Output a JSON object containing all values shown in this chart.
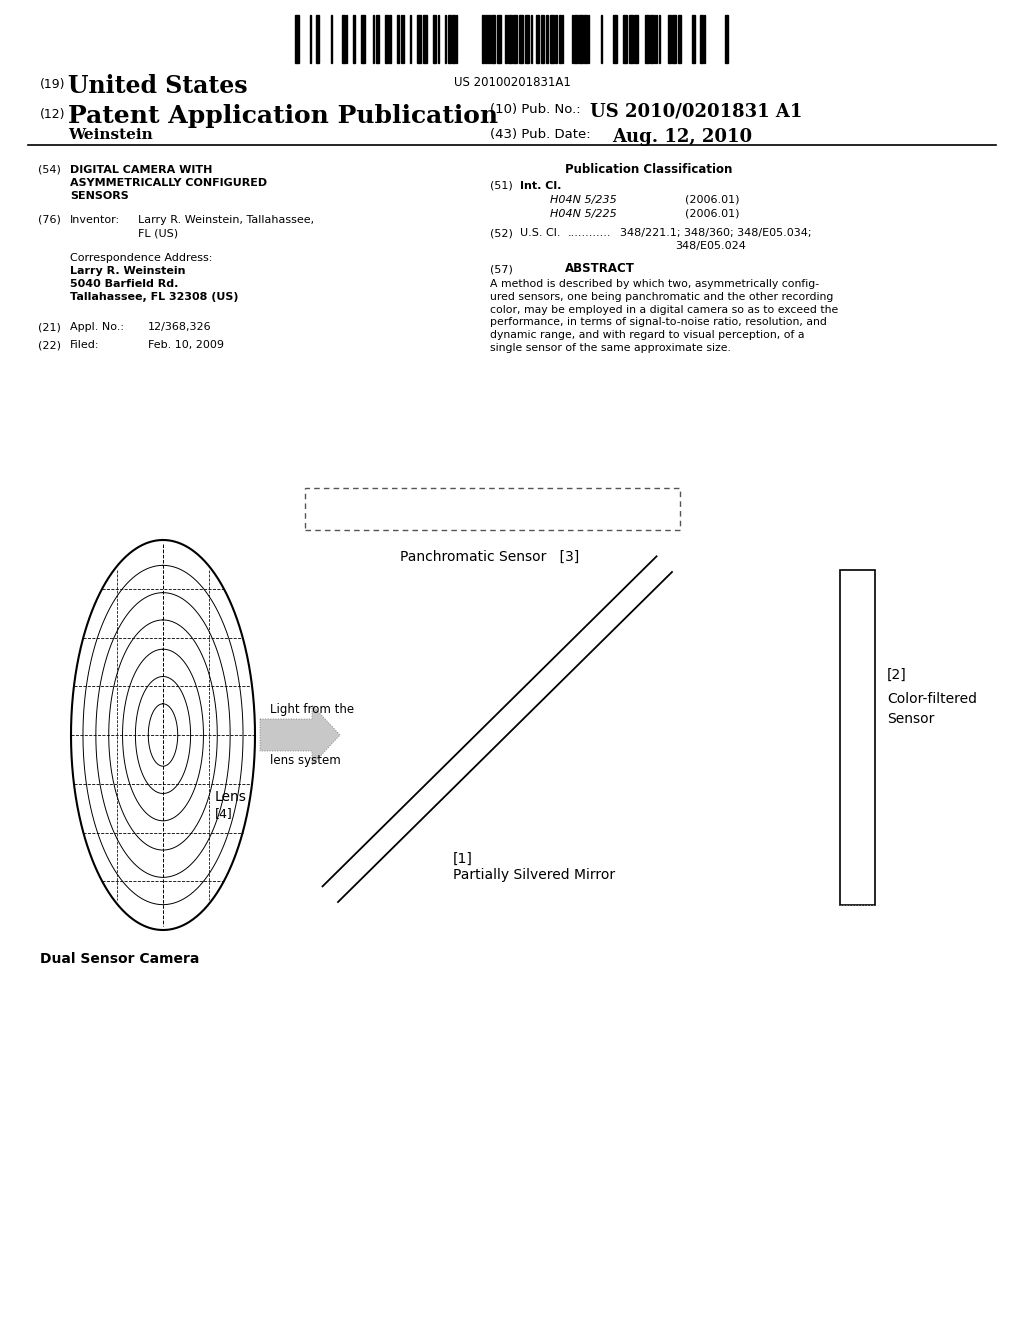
{
  "bg_color": "#ffffff",
  "barcode_text": "US 20100201831A1",
  "title_19": "(19)",
  "title_19_text": "United States",
  "title_12": "(12)",
  "title_12_text": "Patent Application Publication",
  "pub_no_label": "(10) Pub. No.:",
  "pub_no_value": "US 2010/0201831 A1",
  "pub_date_label": "(43) Pub. Date:",
  "pub_date_value": "Aug. 12, 2010",
  "inventor_name": "Weinstein",
  "field_54_label": "(54)",
  "field_54_title1": "DIGITAL CAMERA WITH",
  "field_54_title2": "ASYMMETRICALLY CONFIGURED",
  "field_54_title3": "SENSORS",
  "field_76_label": "(76)",
  "field_76_title": "Inventor:",
  "field_76_value1": "Larry R. Weinstein, Tallahassee,",
  "field_76_value2": "FL (US)",
  "corr_title": "Correspondence Address:",
  "corr_name": "Larry R. Weinstein",
  "corr_addr1": "5040 Barfield Rd.",
  "corr_addr2": "Tallahassee, FL 32308 (US)",
  "field_21_label": "(21)",
  "field_21_title": "Appl. No.:",
  "field_21_value": "12/368,326",
  "field_22_label": "(22)",
  "field_22_title": "Filed:",
  "field_22_value": "Feb. 10, 2009",
  "pub_class_title": "Publication Classification",
  "field_51_label": "(51)",
  "field_51_title": "Int. Cl.",
  "field_51_class1": "H04N 5/235",
  "field_51_year1": "(2006.01)",
  "field_51_class2": "H04N 5/225",
  "field_51_year2": "(2006.01)",
  "field_52_label": "(52)",
  "field_52_title": "U.S. Cl.",
  "field_52_dots": "............",
  "field_52_value": "348/221.1; 348/360; 348/E05.034;",
  "field_52_value2": "348/E05.024",
  "field_57_label": "(57)",
  "field_57_title": "ABSTRACT",
  "abstract_text": "A method is described by which two, asymmetrically config-\nured sensors, one being panchromatic and the other recording\ncolor, may be employed in a digital camera so as to exceed the\nperformance, in terms of signal-to-noise ratio, resolution, and\ndynamic range, and with regard to visual perception, of a\nsingle sensor of the same approximate size.",
  "diag_label_panchr": "Panchromatic Sensor",
  "diag_label_panchr_num": "[3]",
  "diag_label_mirror_num": "[1]",
  "diag_label_mirror_text": "Partially Silvered Mirror",
  "diag_label_color_num": "[2]",
  "diag_label_color_text1": "Color-filtered",
  "diag_label_color_text2": "Sensor",
  "diag_label_lens_num": "[4]",
  "diag_label_lens_text": "Lens",
  "diag_label_light1": "Light from the",
  "diag_label_light2": "lens system",
  "diag_label_camera": "Dual Sensor Camera"
}
